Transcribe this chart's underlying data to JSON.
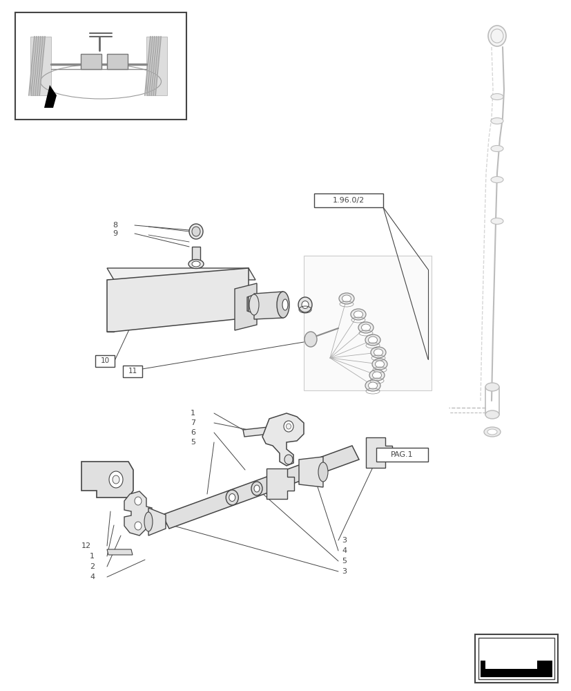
{
  "bg_color": "#ffffff",
  "lc": "#444444",
  "lg": "#bbbbbb",
  "mg": "#888888",
  "fig_width": 8.28,
  "fig_height": 10.0,
  "dpi": 100
}
